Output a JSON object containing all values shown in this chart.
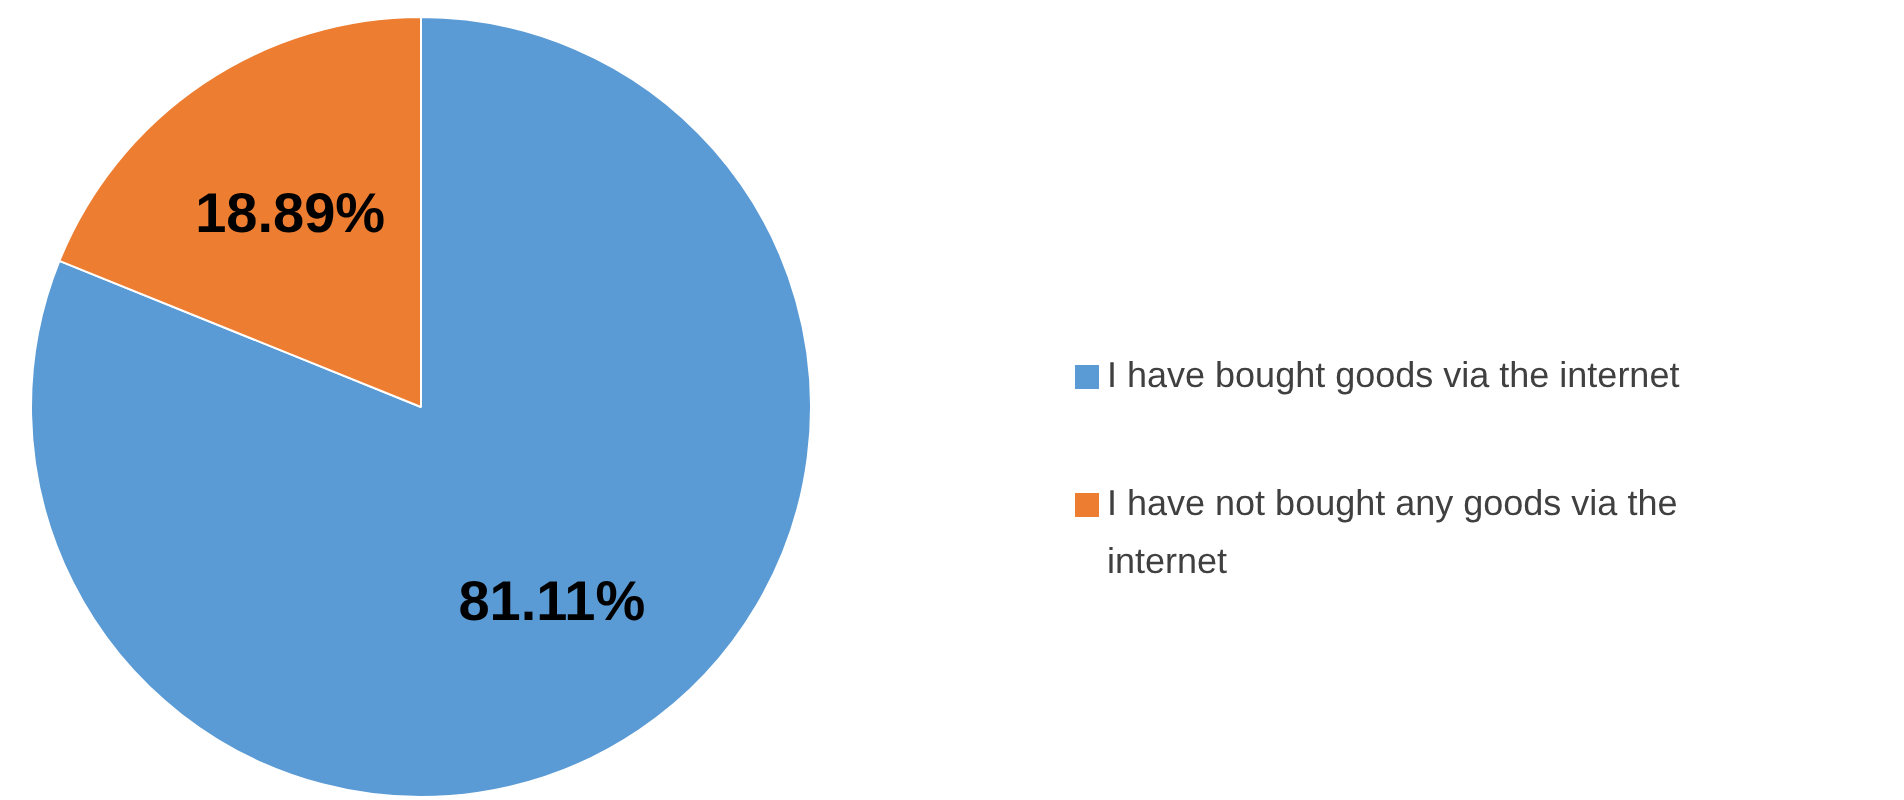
{
  "chart_data": {
    "type": "pie",
    "categories": [
      "I have bought goods via the internet",
      "I have not bought any goods via the internet"
    ],
    "values": [
      81.11,
      18.89
    ],
    "colors": [
      "#5b9bd5",
      "#ed7d31"
    ],
    "value_labels": [
      "81.11%",
      "18.89%"
    ],
    "legend": "right"
  }
}
